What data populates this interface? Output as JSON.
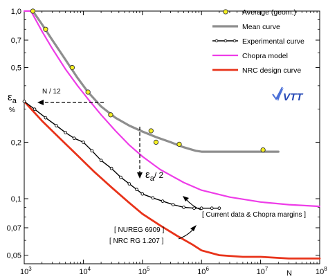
{
  "chart_data": {
    "type": "line",
    "xscale": "log",
    "yscale": "log",
    "xlim": [
      1000,
      100000000
    ],
    "ylim": [
      0.045,
      1.0
    ],
    "grid": false,
    "legend_placement": "top-right",
    "xlabel": "N",
    "ylabel_symbol": "ε",
    "ylabel_sub": "a",
    "ylabel_unit": "%",
    "x_ticks": [
      {
        "value": 1000,
        "base": "10",
        "exp": "3"
      },
      {
        "value": 10000,
        "base": "10",
        "exp": "4"
      },
      {
        "value": 100000,
        "base": "10",
        "exp": "5"
      },
      {
        "value": 1000000,
        "base": "10",
        "exp": "6"
      },
      {
        "value": 10000000,
        "base": "10",
        "exp": "7"
      },
      {
        "value": 100000000,
        "base": "10",
        "exp": "8"
      }
    ],
    "y_ticks": [
      {
        "value": 1.0,
        "label": "1,0"
      },
      {
        "value": 0.7,
        "label": "0,7"
      },
      {
        "value": 0.5,
        "label": "0,5"
      },
      {
        "value": 0.2,
        "label": "0,2"
      },
      {
        "value": 0.1,
        "label": "0,1"
      },
      {
        "value": 0.07,
        "label": "0,07"
      },
      {
        "value": 0.05,
        "label": "0,05"
      }
    ],
    "series": [
      {
        "name": "Average (geom.)",
        "kind": "markers",
        "color": "#f5ef22",
        "x": [
          1400,
          2300,
          6500,
          12000,
          29000,
          140000,
          170000,
          420000,
          11000000
        ],
        "y": [
          1.0,
          0.8,
          0.5,
          0.37,
          0.28,
          0.23,
          0.2,
          0.195,
          0.182
        ]
      },
      {
        "name": "Mean curve",
        "kind": "line",
        "color": "#8e8e8e",
        "x": [
          1400,
          2000,
          3000,
          5000,
          8000,
          12000,
          20000,
          35000,
          60000,
          100000,
          170000,
          300000,
          500000,
          800000,
          1000000,
          2000000,
          5000000,
          10000000,
          20000000
        ],
        "y": [
          1.0,
          0.85,
          0.7,
          0.55,
          0.44,
          0.37,
          0.31,
          0.27,
          0.245,
          0.228,
          0.213,
          0.2,
          0.188,
          0.18,
          0.178,
          0.178,
          0.178,
          0.178,
          0.178
        ]
      },
      {
        "name": "Experimental curve",
        "kind": "line-markers",
        "color": "#000000",
        "x": [
          1000,
          1500,
          2300,
          3500,
          5000,
          7000,
          10000,
          14000,
          20000,
          30000,
          43000,
          60000,
          80000,
          100000,
          150000,
          220000,
          330000,
          500000,
          750000,
          1000000,
          1500000,
          2000000
        ],
        "y": [
          0.33,
          0.3,
          0.27,
          0.245,
          0.225,
          0.21,
          0.2,
          0.18,
          0.16,
          0.145,
          0.13,
          0.12,
          0.112,
          0.106,
          0.101,
          0.097,
          0.093,
          0.09,
          0.089,
          0.089,
          0.089,
          0.089
        ]
      },
      {
        "name": "Chopra model",
        "kind": "line",
        "color": "#ee3ce8",
        "x": [
          1000,
          1300,
          2000,
          3000,
          5000,
          8000,
          12000,
          20000,
          35000,
          60000,
          100000,
          200000,
          500000,
          1000000,
          3000000,
          10000000,
          30000000,
          100000000
        ],
        "y": [
          1.0,
          1.0,
          0.78,
          0.63,
          0.49,
          0.4,
          0.34,
          0.28,
          0.23,
          0.193,
          0.168,
          0.143,
          0.122,
          0.111,
          0.102,
          0.096,
          0.093,
          0.091
        ]
      },
      {
        "name": "NRC design curve",
        "kind": "line",
        "color": "#e8331a",
        "x": [
          1000,
          2000,
          4000,
          8000,
          15000,
          30000,
          60000,
          100000,
          200000,
          400000,
          700000,
          1000000,
          2000000,
          5000000,
          10000000,
          30000000,
          100000000
        ],
        "y": [
          0.33,
          0.26,
          0.21,
          0.17,
          0.14,
          0.115,
          0.095,
          0.083,
          0.072,
          0.063,
          0.057,
          0.053,
          0.05,
          0.049,
          0.049,
          0.048,
          0.048
        ]
      }
    ],
    "annotations": {
      "n_over_12": "N / 12",
      "eps_a_over_2_symbol": "ε",
      "eps_a_over_2_sub": "a",
      "eps_a_over_2_tail": "/ 2",
      "current_data": "[ Current data & Chopra margins ]",
      "nureg": "[ NUREG 6909 ]",
      "nrc_rg": "[ NRC RG 1.207 ]",
      "logo": "VTT"
    }
  }
}
